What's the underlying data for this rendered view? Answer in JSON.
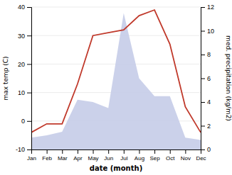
{
  "chart_data": {
    "type": "line",
    "xlabel": "date (month)",
    "ylabel": "max temp (C)",
    "y2label": "med. precipitation (kg/m2)",
    "categories": [
      "Jan",
      "Feb",
      "Mar",
      "Apr",
      "May",
      "Jun",
      "Jul",
      "Aug",
      "Sep",
      "Oct",
      "Nov",
      "Dec"
    ],
    "series": [
      {
        "type": "area",
        "axis": "y2",
        "color": "#c5cce8",
        "values": [
          1.0,
          1.2,
          1.5,
          4.2,
          4.0,
          3.5,
          11.5,
          6.0,
          4.5,
          4.5,
          1.0,
          0.8
        ]
      },
      {
        "type": "line",
        "color": "#c0392b",
        "values": [
          -4,
          -1,
          -1,
          13,
          30,
          31,
          32,
          37,
          39,
          27,
          5,
          -4
        ]
      }
    ],
    "ylim": [
      -10,
      40
    ],
    "yticks": [
      -10,
      0,
      10,
      20,
      30,
      40
    ],
    "y2lim": [
      0,
      12
    ],
    "y2ticks": [
      0,
      2,
      4,
      6,
      8,
      10,
      12
    ],
    "grid": true
  }
}
